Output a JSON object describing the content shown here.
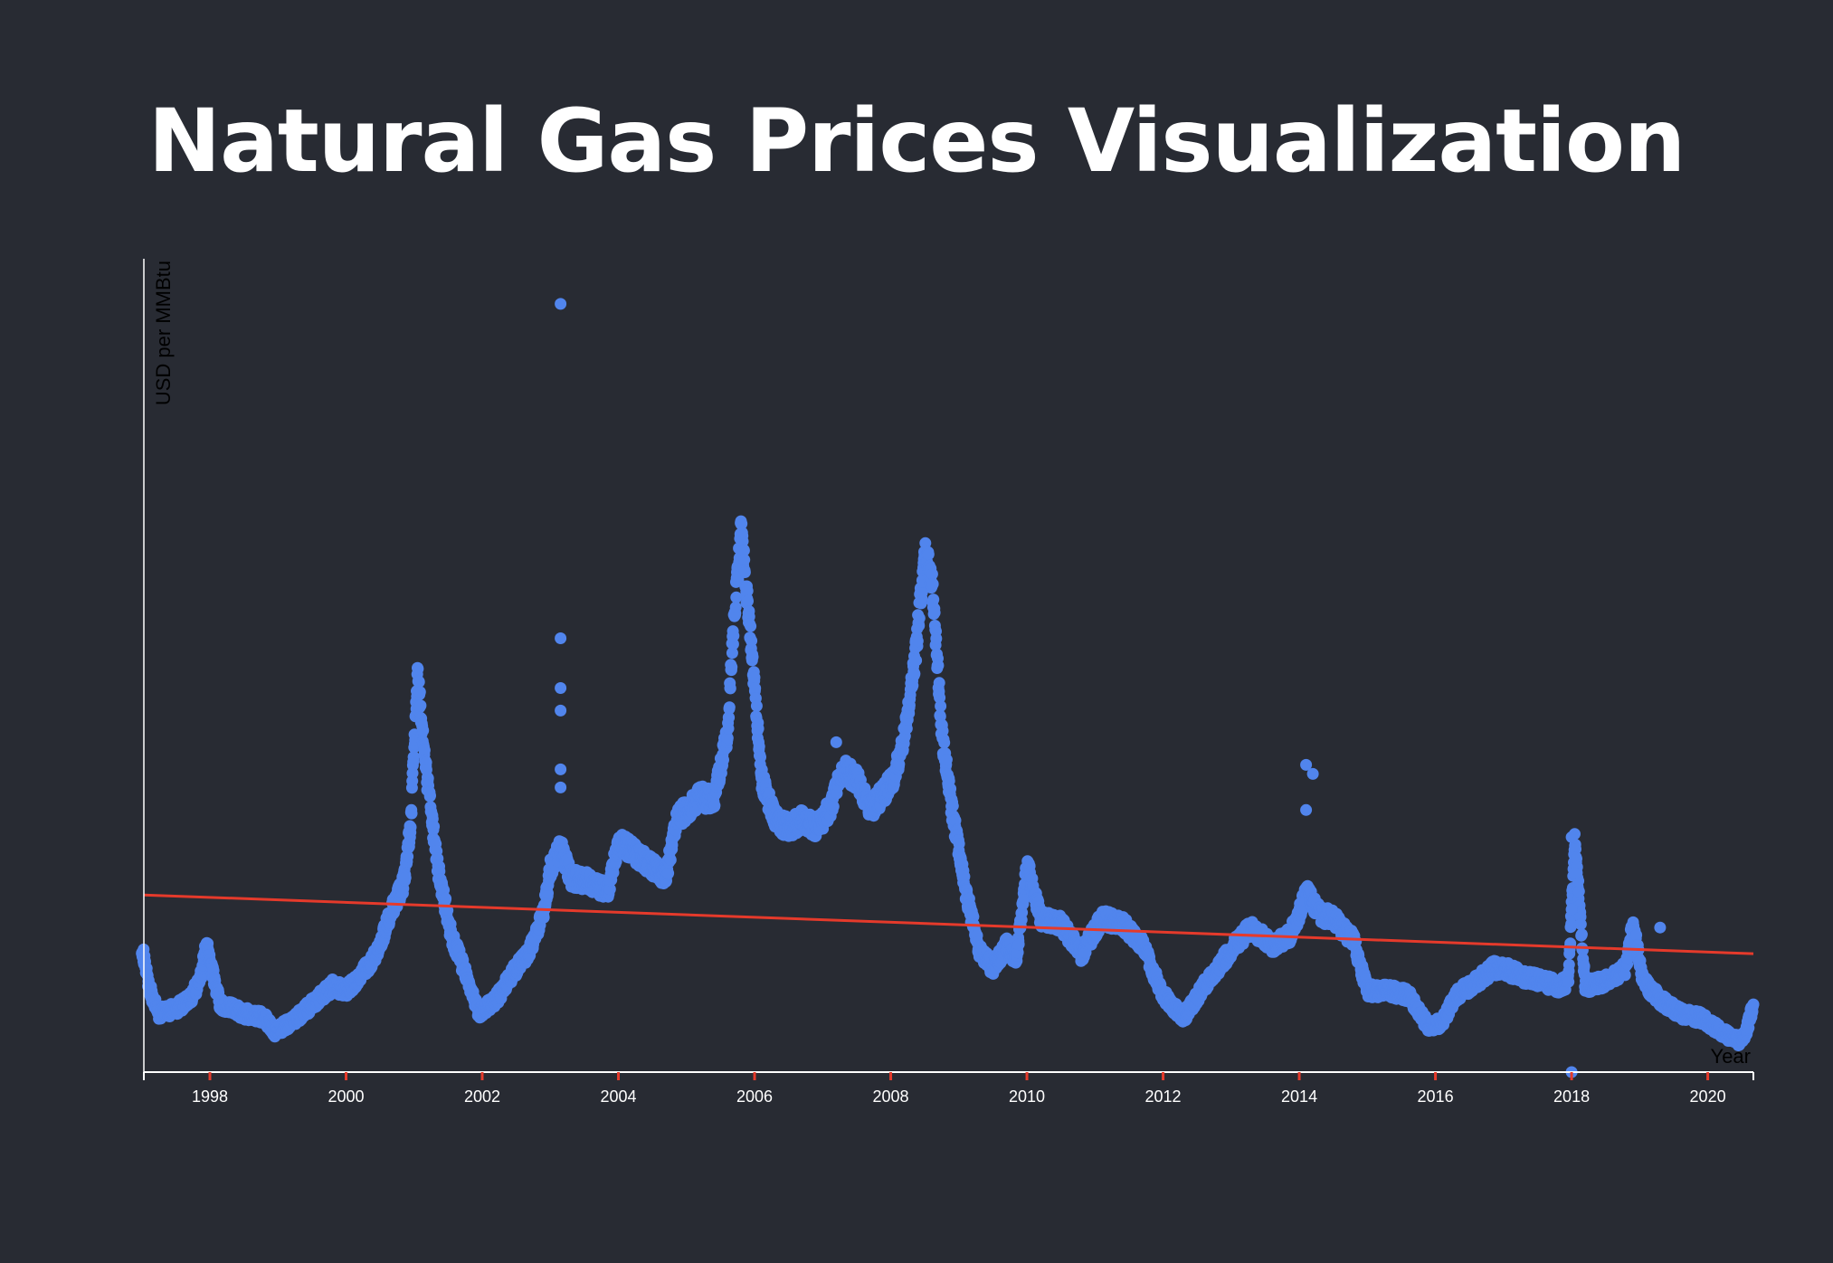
{
  "chart_data": {
    "type": "scatter",
    "title": "Natural Gas Prices Visualization",
    "xlabel": "Year",
    "ylabel": "USD per MMBtu",
    "xlim": [
      1997.03,
      2020.67
    ],
    "ylim": [
      1,
      19
    ],
    "x_ticks": [
      "1998",
      "2000",
      "2002",
      "2004",
      "2006",
      "2008",
      "2010",
      "2012",
      "2014",
      "2016",
      "2018",
      "2020"
    ],
    "grid": false,
    "colors": {
      "points": "#5185ed",
      "trend": "#e53a2b",
      "axis": "#ffffff",
      "tick_marks": "#e53a2b"
    },
    "series": [
      {
        "x": [
          1997.0,
          1997.1,
          1997.25,
          1997.5,
          1997.7,
          1997.85,
          1997.95,
          1998.15,
          1998.5,
          1998.8,
          1998.95,
          1999.2,
          1999.5,
          1999.8,
          2000.0,
          2000.2,
          2000.45,
          2000.65,
          2000.85,
          2000.95,
          2001.05,
          2001.15,
          2001.35,
          2001.55,
          2001.75,
          2001.95,
          2002.2,
          2002.5,
          2002.7,
          2002.9,
          2003.0,
          2003.15,
          2003.3,
          2003.6,
          2003.85,
          2004.0,
          2004.2,
          2004.45,
          2004.7,
          2004.85,
          2005.0,
          2005.2,
          2005.4,
          2005.6,
          2005.7,
          2005.8,
          2005.95,
          2006.1,
          2006.3,
          2006.5,
          2006.7,
          2006.9,
          2007.1,
          2007.3,
          2007.5,
          2007.7,
          2007.9,
          2008.05,
          2008.2,
          2008.35,
          2008.5,
          2008.6,
          2008.75,
          2008.9,
          2009.1,
          2009.3,
          2009.5,
          2009.7,
          2009.85,
          2010.0,
          2010.2,
          2010.5,
          2010.8,
          2011.1,
          2011.4,
          2011.7,
          2012.0,
          2012.3,
          2012.6,
          2012.9,
          2013.1,
          2013.3,
          2013.6,
          2013.85,
          2014.0,
          2014.1,
          2014.3,
          2014.5,
          2014.8,
          2015.0,
          2015.3,
          2015.6,
          2015.9,
          2016.1,
          2016.3,
          2016.6,
          2016.85,
          2017.0,
          2017.3,
          2017.6,
          2017.8,
          2017.95,
          2018.05,
          2018.2,
          2018.5,
          2018.8,
          2018.9,
          2019.05,
          2019.3,
          2019.6,
          2019.9,
          2020.1,
          2020.3,
          2020.45,
          2020.55,
          2020.67
        ],
        "y": [
          3.8,
          2.9,
          2.3,
          2.4,
          2.6,
          3.0,
          3.8,
          2.5,
          2.3,
          2.2,
          1.9,
          2.1,
          2.5,
          2.9,
          2.8,
          3.1,
          3.6,
          4.5,
          5.2,
          6.5,
          9.8,
          8.0,
          5.5,
          4.0,
          3.2,
          2.3,
          2.6,
          3.3,
          3.7,
          4.5,
          5.5,
          6.0,
          5.3,
          5.2,
          5.0,
          6.1,
          5.9,
          5.6,
          5.3,
          6.6,
          6.8,
          7.1,
          7.0,
          8.5,
          11.0,
          13.0,
          10.5,
          7.5,
          6.6,
          6.4,
          6.6,
          6.4,
          6.8,
          7.7,
          7.5,
          6.8,
          7.2,
          7.5,
          8.5,
          10.0,
          12.5,
          12.0,
          8.5,
          6.8,
          5.0,
          3.7,
          3.3,
          3.8,
          3.5,
          5.6,
          4.4,
          4.3,
          3.6,
          4.4,
          4.3,
          3.8,
          2.7,
          2.2,
          2.9,
          3.5,
          3.9,
          4.2,
          3.8,
          4.0,
          4.5,
          5.0,
          4.5,
          4.4,
          3.9,
          2.8,
          2.8,
          2.7,
          2.0,
          2.1,
          2.7,
          3.0,
          3.3,
          3.3,
          3.1,
          3.0,
          2.9,
          3.0,
          6.2,
          2.9,
          3.0,
          3.3,
          4.3,
          3.0,
          2.6,
          2.3,
          2.2,
          2.0,
          1.8,
          1.7,
          1.8,
          2.5
        ]
      },
      {
        "x": [
          2003.15,
          2003.15,
          2003.15,
          2003.15,
          2003.15,
          2003.15,
          2007.2,
          2014.1,
          2014.1,
          2014.2,
          2018.0,
          2018.05,
          2018.0,
          2018.0,
          2019.3
        ],
        "y": [
          18.0,
          10.6,
          9.5,
          9.0,
          7.7,
          7.3,
          8.3,
          7.8,
          6.8,
          7.6,
          1.0,
          5.4,
          6.2,
          4.6,
          4.2
        ]
      }
    ],
    "trend": {
      "x": [
        1997.03,
        2020.67
      ],
      "y": [
        4.92,
        3.62
      ]
    }
  }
}
